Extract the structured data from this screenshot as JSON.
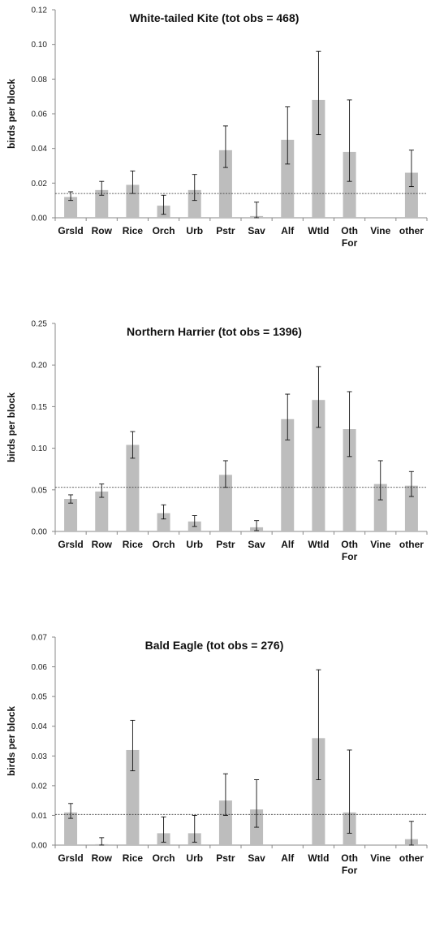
{
  "chart_data": [
    {
      "type": "bar",
      "title": "White-tailed Kite (tot obs = 468)",
      "ylabel": "birds per block",
      "xlabel": "",
      "categories": [
        [
          "Grsld"
        ],
        [
          "Row"
        ],
        [
          "Rice"
        ],
        [
          "Orch"
        ],
        [
          "Urb"
        ],
        [
          "Pstr"
        ],
        [
          "Sav"
        ],
        [
          "Alf"
        ],
        [
          "Wtld"
        ],
        [
          "Oth",
          "For"
        ],
        [
          "Vine"
        ],
        [
          "other"
        ]
      ],
      "values": [
        0.012,
        0.016,
        0.019,
        0.007,
        0.016,
        0.039,
        0.001,
        0.045,
        0.068,
        0.038,
        0.0,
        0.026
      ],
      "error_low": [
        0.01,
        0.013,
        0.014,
        0.002,
        0.01,
        0.029,
        0.0,
        0.031,
        0.048,
        0.021,
        0.0,
        0.018
      ],
      "error_high": [
        0.015,
        0.021,
        0.027,
        0.013,
        0.025,
        0.053,
        0.009,
        0.064,
        0.096,
        0.068,
        0.0,
        0.039
      ],
      "reference_line": 0.014,
      "ylim": [
        0,
        0.12
      ],
      "yticks": [
        0,
        0.02,
        0.04,
        0.06,
        0.08,
        0.1,
        0.12
      ],
      "ytick_labels": [
        "0.00",
        "0.02",
        "0.04",
        "0.06",
        "0.08",
        "0.10",
        "0.12"
      ],
      "grid": false,
      "legend": "none",
      "bar_color": "#bdbdbd"
    },
    {
      "type": "bar",
      "title": "Northern Harrier (tot obs = 1396)",
      "ylabel": "birds per block",
      "xlabel": "",
      "categories": [
        [
          "Grsld"
        ],
        [
          "Row"
        ],
        [
          "Rice"
        ],
        [
          "Orch"
        ],
        [
          "Urb"
        ],
        [
          "Pstr"
        ],
        [
          "Sav"
        ],
        [
          "Alf"
        ],
        [
          "Wtld"
        ],
        [
          "Oth",
          "For"
        ],
        [
          "Vine"
        ],
        [
          "other"
        ]
      ],
      "values": [
        0.039,
        0.048,
        0.104,
        0.022,
        0.012,
        0.068,
        0.005,
        0.135,
        0.158,
        0.123,
        0.057,
        0.055
      ],
      "error_low": [
        0.034,
        0.041,
        0.088,
        0.015,
        0.006,
        0.053,
        0.001,
        0.11,
        0.125,
        0.09,
        0.038,
        0.042
      ],
      "error_high": [
        0.044,
        0.057,
        0.12,
        0.032,
        0.019,
        0.085,
        0.013,
        0.165,
        0.198,
        0.168,
        0.085,
        0.072
      ],
      "reference_line": 0.053,
      "ylim": [
        0,
        0.25
      ],
      "yticks": [
        0,
        0.05,
        0.1,
        0.15,
        0.2,
        0.25
      ],
      "ytick_labels": [
        "0.00",
        "0.05",
        "0.10",
        "0.15",
        "0.20",
        "0.25"
      ],
      "grid": false,
      "legend": "none",
      "bar_color": "#bdbdbd"
    },
    {
      "type": "bar",
      "title": "Bald Eagle (tot obs = 276)",
      "ylabel": "birds per block",
      "xlabel": "",
      "categories": [
        [
          "Grsld"
        ],
        [
          "Row"
        ],
        [
          "Rice"
        ],
        [
          "Orch"
        ],
        [
          "Urb"
        ],
        [
          "Pstr"
        ],
        [
          "Sav"
        ],
        [
          "Alf"
        ],
        [
          "Wtld"
        ],
        [
          "Oth",
          "For"
        ],
        [
          "Vine"
        ],
        [
          "other"
        ]
      ],
      "values": [
        0.011,
        0.0003,
        0.032,
        0.004,
        0.004,
        0.015,
        0.012,
        0.0,
        0.036,
        0.011,
        0.0,
        0.002
      ],
      "error_low": [
        0.009,
        0.0,
        0.025,
        0.001,
        0.001,
        0.01,
        0.006,
        0.0,
        0.022,
        0.004,
        0.0,
        0.0
      ],
      "error_high": [
        0.014,
        0.0025,
        0.042,
        0.0095,
        0.01,
        0.024,
        0.022,
        0.0,
        0.059,
        0.032,
        0.0,
        0.008
      ],
      "reference_line": 0.0103,
      "ylim": [
        0,
        0.07
      ],
      "yticks": [
        0,
        0.01,
        0.02,
        0.03,
        0.04,
        0.05,
        0.06,
        0.07
      ],
      "ytick_labels": [
        "0.00",
        "0.01",
        "0.02",
        "0.03",
        "0.04",
        "0.05",
        "0.06",
        "0.07"
      ],
      "grid": false,
      "legend": "none",
      "bar_color": "#bdbdbd"
    }
  ]
}
